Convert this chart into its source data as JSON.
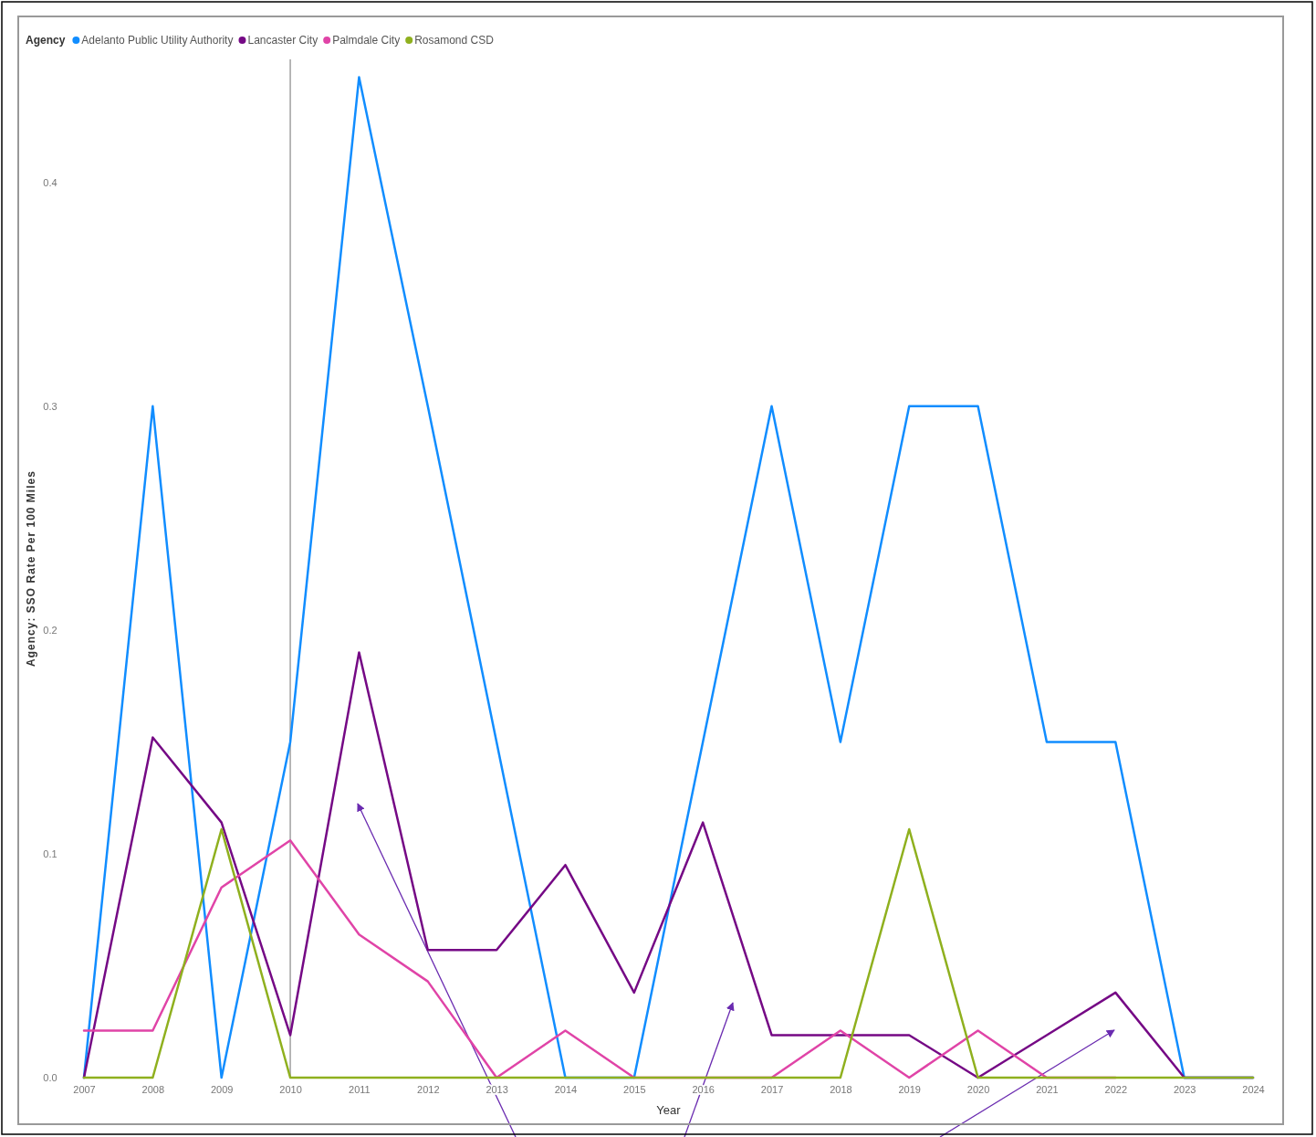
{
  "chart_data": {
    "type": "line",
    "xlabel": "Year",
    "ylabel": "Agency: SSO Rate Per 100 Miles",
    "legend_title": "Agency",
    "legend": "top left",
    "grid": false,
    "marker": "none",
    "line_style": "solid",
    "categories": [
      "2007",
      "2008",
      "2009",
      "2010",
      "2011",
      "2012",
      "2013",
      "2014",
      "2015",
      "2016",
      "2017",
      "2018",
      "2019",
      "2020",
      "2021",
      "2022",
      "2023",
      "2024"
    ],
    "ylim": [
      0,
      0.455
    ],
    "yticks": [
      {
        "value": 0,
        "label": "0.0"
      },
      {
        "value": 0.1,
        "label": "0.1"
      },
      {
        "value": 0.2,
        "label": "0.2"
      },
      {
        "value": 0.3,
        "label": "0.3"
      },
      {
        "value": 0.4,
        "label": "0.4"
      }
    ],
    "ref_lines": [
      {
        "axis": "x",
        "value": "2010",
        "color": "#888888"
      }
    ],
    "series": [
      {
        "name": "Adelanto Public Utility Authority",
        "color": "#118dff",
        "values": [
          0,
          0.3,
          0,
          0.15,
          0.447,
          0.3,
          0.15,
          0,
          0,
          0.15,
          0.3,
          0.15,
          0.3,
          0.3,
          0.15,
          0.15,
          0,
          0
        ]
      },
      {
        "name": "Lancaster City",
        "color": "#750985",
        "values": [
          0,
          0.152,
          0.114,
          0.019,
          0.19,
          0.057,
          0.057,
          0.095,
          0.038,
          0.114,
          0.019,
          0.019,
          0.019,
          0,
          0.019,
          0.038,
          0,
          0
        ]
      },
      {
        "name": "Palmdale City",
        "color": "#e044a7",
        "values": [
          0.021,
          0.021,
          0.085,
          0.106,
          0.064,
          0.043,
          0,
          0.021,
          0,
          0,
          0,
          0.021,
          0,
          0.021,
          0,
          0,
          null,
          null
        ]
      },
      {
        "name": "Rosamond CSD",
        "color": "#8fb01e",
        "values": [
          0,
          0,
          0.111,
          0,
          0,
          0,
          0,
          0,
          0,
          0,
          0,
          0,
          0.111,
          0,
          0,
          0,
          0,
          0
        ]
      }
    ]
  }
}
